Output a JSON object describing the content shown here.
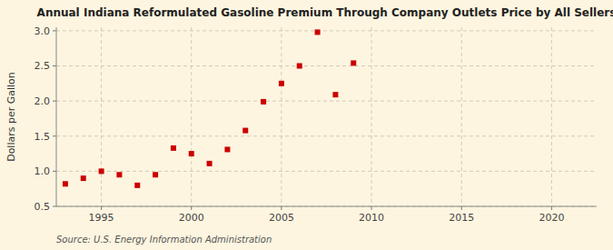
{
  "chart_data": {
    "type": "scatter",
    "title": "Annual Indiana Reformulated Gasoline Premium Through Company Outlets Price by All Sellers",
    "ylabel": "Dollars per Gallon",
    "source": "Source: U.S. Energy Information Administration",
    "color": "#cc0000",
    "marker": "square",
    "grid": true,
    "xlim": [
      1992.5,
      2022.5
    ],
    "ylim": [
      0.5,
      3.05
    ],
    "xticks": [
      1995,
      2000,
      2005,
      2010,
      2015,
      2020
    ],
    "yticks": [
      0.5,
      {
        "value": 1.0,
        "label": "1.0"
      },
      1.5,
      {
        "value": 2.0,
        "label": "2.0"
      },
      2.5,
      {
        "value": 3.0,
        "label": "3.0"
      }
    ],
    "x": [
      1993,
      1994,
      1995,
      1996,
      1997,
      1998,
      1999,
      2000,
      2001,
      2002,
      2003,
      2004,
      2005,
      2006,
      2007,
      2008,
      2009
    ],
    "values": [
      0.82,
      0.9,
      1.0,
      0.95,
      0.8,
      0.95,
      1.33,
      1.25,
      1.11,
      1.31,
      1.58,
      1.99,
      2.25,
      2.5,
      2.98,
      2.09,
      2.54
    ]
  }
}
